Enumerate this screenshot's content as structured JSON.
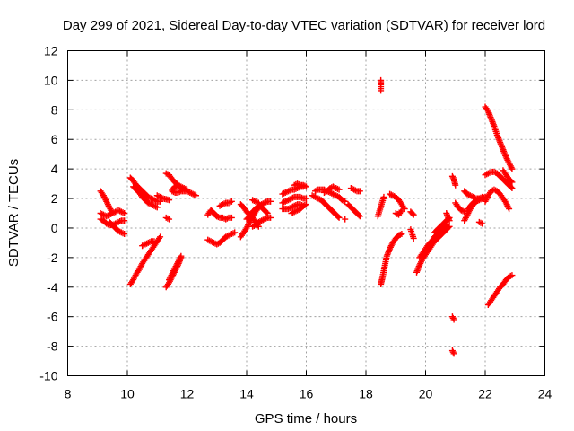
{
  "chart_data": {
    "type": "scatter",
    "title": "Day 299 of 2021, Sidereal Day-to-day VTEC variation (SDTVAR) for receiver lord",
    "xlabel": "GPS time / hours",
    "ylabel": "SDTVAR / TECUs",
    "xlim": [
      8,
      24
    ],
    "ylim": [
      -10,
      12
    ],
    "xticks": [
      "8",
      "10",
      "12",
      "14",
      "16",
      "18",
      "20",
      "22",
      "24"
    ],
    "yticks": [
      "12",
      "10",
      "8",
      "6",
      "4",
      "2",
      "0",
      "-2",
      "-4",
      "-6",
      "-8",
      "-10"
    ],
    "grid": true,
    "marker": "+",
    "color": "#ff0000",
    "segments": [
      {
        "x": [
          9.1,
          9.2,
          9.3,
          9.4,
          9.5
        ],
        "y": [
          2.5,
          2.2,
          1.8,
          1.4,
          1.0
        ]
      },
      {
        "x": [
          9.1,
          9.2,
          9.3,
          9.4,
          9.5,
          9.6,
          9.7,
          9.8,
          9.9
        ],
        "y": [
          1.0,
          0.9,
          0.8,
          0.9,
          1.0,
          1.1,
          1.2,
          1.1,
          1.0
        ]
      },
      {
        "x": [
          9.1,
          9.2,
          9.3,
          9.4,
          9.5,
          9.6,
          9.7,
          9.8,
          9.9
        ],
        "y": [
          0.6,
          0.5,
          0.3,
          0.2,
          0.2,
          0.3,
          0.4,
          0.5,
          0.5
        ]
      },
      {
        "x": [
          9.4,
          9.5,
          9.6,
          9.7,
          9.8,
          9.9
        ],
        "y": [
          0.4,
          0.2,
          0.0,
          -0.2,
          -0.3,
          -0.4
        ]
      },
      {
        "x": [
          10.1,
          10.2,
          10.3,
          10.4,
          10.5,
          10.6,
          10.7,
          10.8,
          10.9,
          11.0,
          11.1
        ],
        "y": [
          3.4,
          3.2,
          2.9,
          2.7,
          2.5,
          2.3,
          2.1,
          2.0,
          1.9,
          1.8,
          1.8
        ]
      },
      {
        "x": [
          10.2,
          10.3,
          10.4,
          10.5,
          10.6,
          10.7,
          10.8,
          10.9,
          11.0
        ],
        "y": [
          2.8,
          2.6,
          2.4,
          2.1,
          1.9,
          1.7,
          1.6,
          1.5,
          1.4
        ]
      },
      {
        "x": [
          10.1,
          10.2,
          10.3,
          10.4,
          10.5,
          10.6,
          10.7,
          10.8,
          10.9,
          11.0,
          11.1
        ],
        "y": [
          -3.8,
          -3.5,
          -3.1,
          -2.8,
          -2.4,
          -2.1,
          -1.8,
          -1.5,
          -1.2,
          -0.9,
          -0.6
        ]
      },
      {
        "x": [
          10.5,
          10.6,
          10.7,
          10.8,
          10.9
        ],
        "y": [
          -1.2,
          -1.1,
          -1.0,
          -0.9,
          -0.9
        ]
      },
      {
        "x": [
          11.3,
          11.4,
          11.5,
          11.6,
          11.7,
          11.8
        ],
        "y": [
          -4.0,
          -3.7,
          -3.3,
          -2.9,
          -2.5,
          -2.0
        ]
      },
      {
        "x": [
          11.4,
          11.5,
          11.6,
          11.7,
          11.8
        ],
        "y": [
          -3.5,
          -3.1,
          -2.7,
          -2.3,
          -1.9
        ]
      },
      {
        "x": [
          11.3,
          11.4
        ],
        "y": [
          0.7,
          0.6
        ]
      },
      {
        "x": [
          11.3,
          11.4,
          11.5,
          11.6,
          11.7,
          11.8,
          11.9
        ],
        "y": [
          3.7,
          3.6,
          3.3,
          3.1,
          2.9,
          2.7,
          2.6
        ]
      },
      {
        "x": [
          11.5,
          11.6,
          11.7,
          11.8,
          11.9,
          12.0,
          12.1,
          12.2,
          12.3
        ],
        "y": [
          2.5,
          2.4,
          2.4,
          2.5,
          2.5,
          2.5,
          2.4,
          2.3,
          2.2
        ]
      },
      {
        "x": [
          11.5,
          11.6,
          11.7,
          11.8,
          11.9,
          12.0
        ],
        "y": [
          2.6,
          2.8,
          2.9,
          2.8,
          2.7,
          2.6
        ]
      },
      {
        "x": [
          11.0,
          11.2,
          11.4
        ],
        "y": [
          2.2,
          2.0,
          1.9
        ]
      },
      {
        "x": [
          12.7,
          12.8,
          12.9,
          13.0,
          13.1,
          13.2,
          13.3,
          13.4,
          13.5,
          13.6
        ],
        "y": [
          -0.8,
          -0.9,
          -1.0,
          -1.1,
          -1.0,
          -0.8,
          -0.6,
          -0.5,
          -0.4,
          -0.3
        ]
      },
      {
        "x": [
          12.8,
          12.9,
          13.0,
          13.1,
          13.2,
          13.3,
          13.4,
          13.5
        ],
        "y": [
          1.2,
          1.0,
          0.8,
          0.7,
          0.7,
          0.6,
          0.7,
          0.7
        ]
      },
      {
        "x": [
          12.7,
          12.8,
          12.9,
          13.0
        ],
        "y": [
          0.9,
          1.2,
          1.0,
          0.8
        ]
      },
      {
        "x": [
          13.1,
          13.2,
          13.3,
          13.4,
          13.5
        ],
        "y": [
          1.5,
          1.6,
          1.7,
          1.7,
          1.8
        ]
      },
      {
        "x": [
          13.8,
          13.9,
          14.0,
          14.1,
          14.2,
          14.3,
          14.4,
          14.5,
          14.6,
          14.7,
          14.8
        ],
        "y": [
          -0.6,
          -0.3,
          0.0,
          0.4,
          0.8,
          1.1,
          1.4,
          1.6,
          1.7,
          1.8,
          1.8
        ]
      },
      {
        "x": [
          13.8,
          13.9,
          14.0,
          14.1,
          14.2,
          14.3,
          14.4
        ],
        "y": [
          1.6,
          1.4,
          1.1,
          0.9,
          0.7,
          0.4,
          0.1
        ]
      },
      {
        "x": [
          14.0,
          14.1,
          14.2,
          14.3,
          14.4,
          14.5,
          14.6,
          14.7
        ],
        "y": [
          0.6,
          0.8,
          1.1,
          1.3,
          1.5,
          1.4,
          1.2,
          1.0
        ]
      },
      {
        "x": [
          14.2,
          14.3,
          14.4,
          14.5,
          14.6,
          14.7,
          14.8
        ],
        "y": [
          0.1,
          0.2,
          0.4,
          0.5,
          0.6,
          0.7,
          0.7
        ]
      },
      {
        "x": [
          14.2,
          14.3,
          14.4
        ],
        "y": [
          1.9,
          1.8,
          1.7
        ]
      },
      {
        "x": [
          15.2,
          15.3,
          15.4,
          15.5,
          15.6,
          15.7,
          15.8,
          15.9
        ],
        "y": [
          2.3,
          2.4,
          2.5,
          2.6,
          2.6,
          2.7,
          2.8,
          2.8
        ]
      },
      {
        "x": [
          15.2,
          15.3,
          15.4,
          15.5,
          15.6,
          15.7,
          15.8,
          15.9,
          16.0
        ],
        "y": [
          1.7,
          1.8,
          1.9,
          2.0,
          2.1,
          2.1,
          2.1,
          2.0,
          2.0
        ]
      },
      {
        "x": [
          15.2,
          15.3,
          15.4,
          15.5,
          15.6,
          15.7,
          15.8,
          15.9
        ],
        "y": [
          1.3,
          1.3,
          1.3,
          1.4,
          1.5,
          1.6,
          1.6,
          1.5
        ]
      },
      {
        "x": [
          15.5,
          15.6,
          15.7,
          15.8,
          15.9,
          16.0
        ],
        "y": [
          1.0,
          1.1,
          1.2,
          1.3,
          1.5,
          1.6
        ]
      },
      {
        "x": [
          15.6,
          15.7,
          15.8,
          15.9,
          16.0
        ],
        "y": [
          2.9,
          3.0,
          2.9,
          2.9,
          2.8
        ]
      },
      {
        "x": [
          16.2,
          16.3,
          16.4,
          16.5,
          16.6,
          16.7,
          16.8,
          16.9,
          17.0,
          17.1
        ],
        "y": [
          2.2,
          2.1,
          2.0,
          1.9,
          1.7,
          1.5,
          1.3,
          1.1,
          0.9,
          0.7
        ]
      },
      {
        "x": [
          16.3,
          16.4,
          16.5,
          16.6,
          16.7,
          16.8,
          16.9,
          17.0,
          17.1,
          17.2,
          17.3
        ],
        "y": [
          2.5,
          2.6,
          2.6,
          2.6,
          2.5,
          2.4,
          2.3,
          2.2,
          2.1,
          1.9,
          1.8
        ]
      },
      {
        "x": [
          16.6,
          16.7,
          16.8,
          16.9,
          17.0,
          17.1
        ],
        "y": [
          2.4,
          2.5,
          2.7,
          2.8,
          2.7,
          2.6
        ]
      },
      {
        "x": [
          17.4,
          17.5,
          17.6,
          17.7,
          17.8
        ],
        "y": [
          1.6,
          1.4,
          1.2,
          1.0,
          0.8
        ]
      },
      {
        "x": [
          17.5,
          17.6,
          17.7,
          17.8
        ],
        "y": [
          2.7,
          2.6,
          2.5,
          2.5
        ]
      },
      {
        "x": [
          17.3
        ],
        "y": [
          0.6
        ]
      },
      {
        "x": [
          18.5,
          18.5,
          18.5
        ],
        "y": [
          10.0,
          9.7,
          9.3
        ]
      },
      {
        "x": [
          18.4,
          18.6
        ],
        "y": [
          0.8,
          2.1
        ]
      },
      {
        "x": [
          18.5,
          18.55,
          18.6,
          18.65,
          18.7,
          18.8,
          18.9,
          19.0,
          19.1,
          19.2
        ],
        "y": [
          -3.8,
          -3.4,
          -2.9,
          -2.4,
          -1.9,
          -1.4,
          -1.0,
          -0.7,
          -0.5,
          -0.4
        ]
      },
      {
        "x": [
          18.8,
          18.9,
          19.0,
          19.1,
          19.2,
          19.3
        ],
        "y": [
          2.3,
          2.2,
          2.1,
          1.9,
          1.6,
          1.3
        ]
      },
      {
        "x": [
          19.0,
          19.1,
          19.2
        ],
        "y": [
          1.0,
          0.9,
          1.2
        ]
      },
      {
        "x": [
          19.5,
          19.6
        ],
        "y": [
          1.1,
          0.9
        ]
      },
      {
        "x": [
          19.5,
          19.6
        ],
        "y": [
          -0.1,
          -0.7
        ]
      },
      {
        "x": [
          19.7,
          19.8,
          19.9,
          20.0,
          20.1,
          20.2,
          20.3,
          20.4,
          20.5,
          20.6,
          20.7,
          20.8
        ],
        "y": [
          -3.0,
          -2.5,
          -2.1,
          -1.8,
          -1.5,
          -1.2,
          -0.9,
          -0.7,
          -0.5,
          -0.3,
          -0.1,
          0.1
        ]
      },
      {
        "x": [
          19.8,
          19.9,
          20.0,
          20.1,
          20.2,
          20.3,
          20.4,
          20.5,
          20.6,
          20.7
        ],
        "y": [
          -2.0,
          -1.7,
          -1.4,
          -1.1,
          -0.9,
          -0.6,
          -0.4,
          -0.2,
          0.0,
          0.2
        ]
      },
      {
        "x": [
          20.3,
          20.4,
          20.5,
          20.6,
          20.7,
          20.8
        ],
        "y": [
          -0.3,
          -0.1,
          0.1,
          0.3,
          0.5,
          0.7
        ]
      },
      {
        "x": [
          20.7,
          20.8
        ],
        "y": [
          1.0,
          0.5
        ]
      },
      {
        "x": [
          20.9,
          20.95
        ],
        "y": [
          -6.0,
          -6.2
        ]
      },
      {
        "x": [
          20.9,
          20.95
        ],
        "y": [
          -8.3,
          -8.5
        ]
      },
      {
        "x": [
          20.9,
          20.95,
          21.0
        ],
        "y": [
          3.5,
          3.3,
          2.9
        ]
      },
      {
        "x": [
          21.0,
          21.1,
          21.2,
          21.3
        ],
        "y": [
          1.7,
          1.4,
          1.2,
          1.1
        ]
      },
      {
        "x": [
          21.3,
          21.4,
          21.5,
          21.6,
          21.7,
          21.8,
          21.9,
          22.0
        ],
        "y": [
          0.5,
          0.9,
          1.3,
          1.6,
          1.8,
          1.9,
          2.0,
          2.1
        ]
      },
      {
        "x": [
          21.3,
          21.4,
          21.5,
          21.6,
          21.7,
          21.8,
          21.9,
          22.0
        ],
        "y": [
          2.5,
          2.3,
          2.2,
          2.1,
          2.0,
          2.0,
          2.0,
          2.1
        ]
      },
      {
        "x": [
          21.4,
          21.5,
          21.6,
          21.7,
          21.8,
          21.9
        ],
        "y": [
          1.2,
          1.5,
          1.7,
          1.9,
          2.0,
          2.1
        ]
      },
      {
        "x": [
          21.8,
          21.9
        ],
        "y": [
          0.4,
          0.3
        ]
      },
      {
        "x": [
          22.0,
          22.1,
          22.2,
          22.3,
          22.4,
          22.5,
          22.6,
          22.7,
          22.8
        ],
        "y": [
          1.8,
          2.2,
          2.5,
          2.6,
          2.5,
          2.3,
          2.0,
          1.7,
          1.3
        ]
      },
      {
        "x": [
          22.0,
          22.1,
          22.2,
          22.3,
          22.4,
          22.5,
          22.6,
          22.7,
          22.8,
          22.9
        ],
        "y": [
          8.2,
          7.9,
          7.4,
          6.9,
          6.3,
          5.8,
          5.3,
          4.8,
          4.4,
          4.0
        ]
      },
      {
        "x": [
          22.0,
          22.1,
          22.2,
          22.3,
          22.4,
          22.5,
          22.6,
          22.7,
          22.8,
          22.9
        ],
        "y": [
          3.6,
          3.7,
          3.8,
          3.8,
          3.7,
          3.5,
          3.3,
          3.1,
          2.9,
          2.7
        ]
      },
      {
        "x": [
          22.1,
          22.2,
          22.3,
          22.4,
          22.5,
          22.6,
          22.7,
          22.8,
          22.9
        ],
        "y": [
          -5.2,
          -4.9,
          -4.6,
          -4.3,
          -4.0,
          -3.8,
          -3.5,
          -3.3,
          -3.2
        ]
      },
      {
        "x": [
          22.6,
          22.7,
          22.8,
          22.9
        ],
        "y": [
          3.9,
          3.6,
          3.3,
          3.1
        ]
      }
    ]
  }
}
